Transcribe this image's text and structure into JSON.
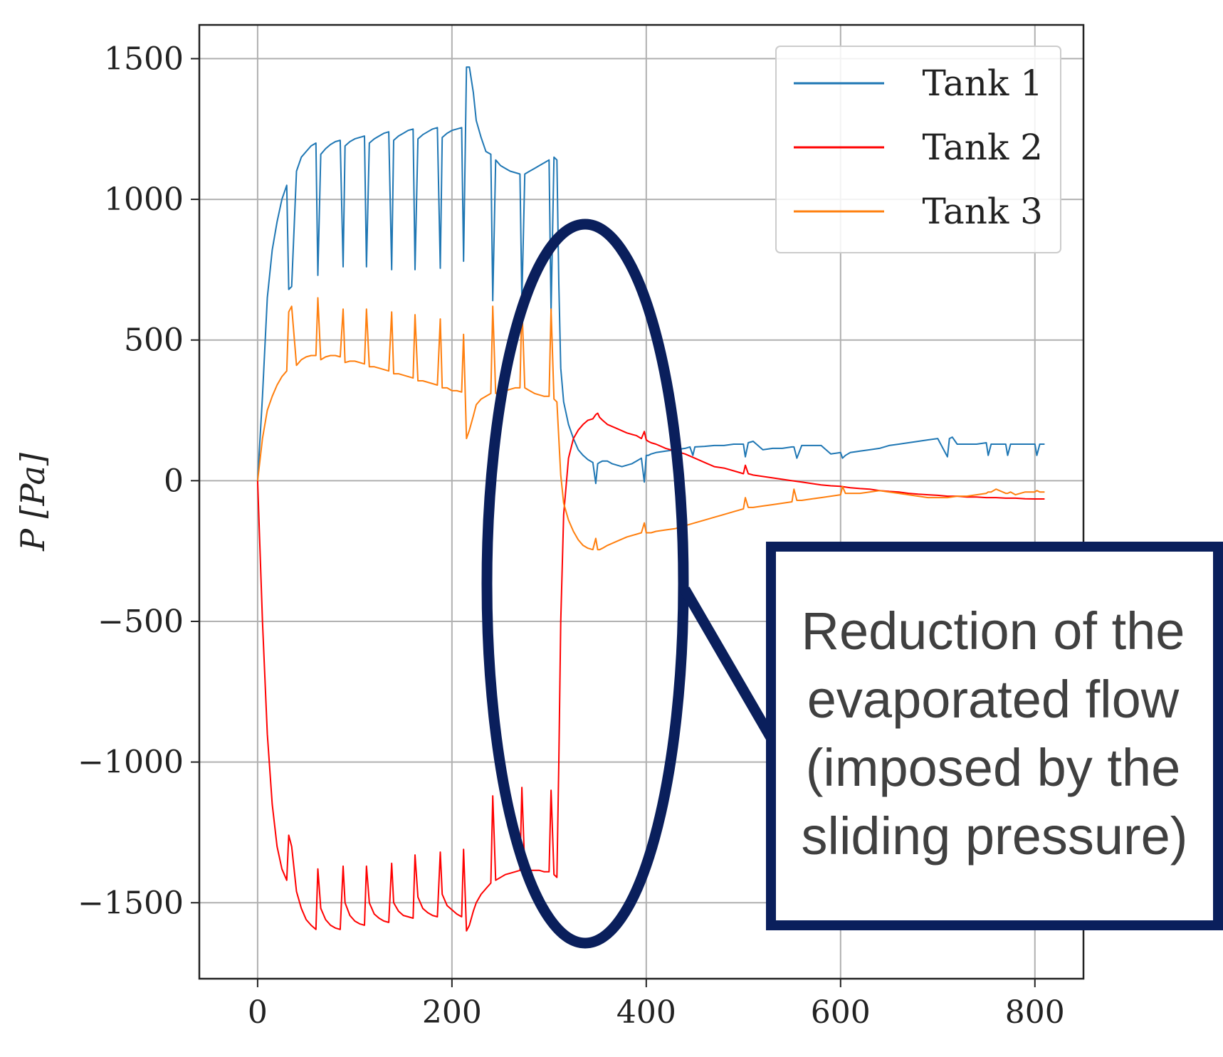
{
  "chart_data": {
    "type": "line",
    "xlabel": "",
    "ylabel": "P [Pa]",
    "xlim": [
      -60,
      850
    ],
    "ylim": [
      -1770,
      1620
    ],
    "xticks": [
      0,
      200,
      400,
      600,
      800
    ],
    "yticks": [
      -1500,
      -1000,
      -500,
      0,
      500,
      1000,
      1500
    ],
    "xtick_labels": [
      "0",
      "200",
      "400",
      "600",
      "800"
    ],
    "ytick_labels": [
      "−1500",
      "−1000",
      "−500",
      "0",
      "500",
      "1000",
      "1500"
    ],
    "grid": true,
    "legend_position": "top-right",
    "series": [
      {
        "name": "Tank 1",
        "color": "#1f77b4",
        "x": [
          0,
          5,
          10,
          15,
          20,
          25,
          30,
          32,
          35,
          40,
          45,
          50,
          55,
          60,
          62,
          65,
          70,
          75,
          80,
          85,
          88,
          90,
          95,
          100,
          105,
          110,
          112,
          115,
          120,
          125,
          130,
          135,
          138,
          140,
          145,
          150,
          155,
          160,
          162,
          165,
          170,
          175,
          180,
          185,
          188,
          190,
          195,
          200,
          205,
          210,
          212,
          215,
          218,
          222,
          225,
          230,
          235,
          240,
          242,
          245,
          250,
          255,
          260,
          265,
          270,
          272,
          275,
          280,
          285,
          290,
          295,
          300,
          302,
          305,
          308,
          310,
          312,
          315,
          320,
          325,
          330,
          335,
          340,
          345,
          348,
          350,
          352,
          355,
          360,
          365,
          370,
          375,
          380,
          385,
          390,
          395,
          398,
          400,
          402,
          405,
          410,
          420,
          430,
          440,
          445,
          448,
          450,
          460,
          470,
          480,
          490,
          500,
          502,
          505,
          510,
          520,
          530,
          540,
          550,
          552,
          555,
          560,
          570,
          580,
          590,
          600,
          602,
          605,
          610,
          620,
          630,
          640,
          650,
          660,
          670,
          680,
          690,
          700,
          710,
          712,
          715,
          720,
          730,
          740,
          750,
          752,
          755,
          760,
          770,
          772,
          775,
          780,
          790,
          800,
          802,
          805,
          810
        ],
        "y": [
          0,
          300,
          650,
          820,
          920,
          1000,
          1050,
          680,
          690,
          1100,
          1150,
          1170,
          1190,
          1200,
          730,
          1160,
          1180,
          1195,
          1205,
          1210,
          760,
          1190,
          1205,
          1215,
          1220,
          1225,
          760,
          1200,
          1215,
          1225,
          1235,
          1240,
          750,
          1210,
          1225,
          1235,
          1245,
          1250,
          750,
          1215,
          1230,
          1240,
          1250,
          1255,
          755,
          1220,
          1235,
          1245,
          1250,
          1255,
          780,
          1470,
          1470,
          1380,
          1280,
          1220,
          1170,
          1160,
          640,
          1140,
          1120,
          1110,
          1100,
          1095,
          1090,
          640,
          1090,
          1100,
          1110,
          1120,
          1130,
          1140,
          600,
          1150,
          1140,
          700,
          400,
          280,
          200,
          150,
          110,
          90,
          75,
          65,
          -10,
          60,
          65,
          70,
          70,
          60,
          55,
          50,
          55,
          60,
          70,
          80,
          -5,
          90,
          90,
          95,
          100,
          105,
          110,
          115,
          120,
          90,
          120,
          122,
          125,
          125,
          130,
          130,
          85,
          135,
          140,
          110,
          115,
          115,
          120,
          120,
          80,
          125,
          125,
          125,
          95,
          100,
          80,
          90,
          100,
          105,
          110,
          115,
          125,
          130,
          135,
          140,
          145,
          150,
          85,
          150,
          155,
          130,
          130,
          130,
          135,
          90,
          130,
          130,
          130,
          90,
          130,
          130,
          130,
          130,
          90,
          130,
          130
        ]
      },
      {
        "name": "Tank 2",
        "color": "#ff0000",
        "x": [
          0,
          5,
          10,
          15,
          20,
          25,
          30,
          32,
          35,
          40,
          45,
          50,
          55,
          60,
          62,
          65,
          70,
          75,
          80,
          85,
          88,
          90,
          95,
          100,
          105,
          110,
          112,
          115,
          120,
          125,
          130,
          135,
          138,
          140,
          145,
          150,
          155,
          160,
          162,
          165,
          170,
          175,
          180,
          185,
          188,
          190,
          195,
          200,
          205,
          210,
          212,
          215,
          218,
          222,
          225,
          230,
          235,
          240,
          242,
          245,
          250,
          255,
          260,
          265,
          270,
          272,
          275,
          280,
          285,
          290,
          295,
          300,
          302,
          305,
          308,
          310,
          312,
          315,
          320,
          325,
          330,
          335,
          340,
          345,
          348,
          350,
          352,
          355,
          360,
          370,
          380,
          390,
          395,
          398,
          400,
          402,
          405,
          410,
          420,
          430,
          440,
          450,
          460,
          470,
          480,
          490,
          500,
          502,
          505,
          510,
          520,
          530,
          540,
          550,
          560,
          570,
          580,
          590,
          600,
          610,
          620,
          630,
          640,
          650,
          660,
          670,
          680,
          690,
          700,
          710,
          720,
          730,
          740,
          750,
          760,
          770,
          780,
          790,
          800,
          810
        ],
        "y": [
          0,
          -500,
          -900,
          -1150,
          -1300,
          -1380,
          -1420,
          -1260,
          -1300,
          -1460,
          -1520,
          -1560,
          -1580,
          -1595,
          -1380,
          -1520,
          -1560,
          -1580,
          -1590,
          -1595,
          -1370,
          -1500,
          -1545,
          -1565,
          -1575,
          -1580,
          -1370,
          -1500,
          -1540,
          -1555,
          -1565,
          -1570,
          -1360,
          -1500,
          -1530,
          -1545,
          -1550,
          -1555,
          -1330,
          -1480,
          -1520,
          -1535,
          -1545,
          -1550,
          -1320,
          -1470,
          -1510,
          -1525,
          -1540,
          -1550,
          -1310,
          -1600,
          -1580,
          -1530,
          -1500,
          -1470,
          -1450,
          -1430,
          -1120,
          -1420,
          -1410,
          -1400,
          -1395,
          -1390,
          -1385,
          -1090,
          -1385,
          -1385,
          -1385,
          -1385,
          -1390,
          -1390,
          -1100,
          -1400,
          -1410,
          -1000,
          -500,
          -120,
          80,
          150,
          180,
          200,
          215,
          220,
          235,
          240,
          225,
          215,
          200,
          185,
          170,
          160,
          150,
          175,
          145,
          140,
          135,
          130,
          115,
          105,
          95,
          80,
          65,
          50,
          45,
          35,
          25,
          55,
          25,
          20,
          15,
          10,
          5,
          0,
          -5,
          -10,
          -15,
          -18,
          -20,
          -25,
          -28,
          -30,
          -35,
          -38,
          -40,
          -45,
          -48,
          -50,
          -52,
          -55,
          -55,
          -58,
          -58,
          -60,
          -60,
          -62,
          -62,
          -64,
          -65,
          -65
        ]
      },
      {
        "name": "Tank 3",
        "color": "#ff7f0e",
        "x": [
          0,
          5,
          10,
          15,
          20,
          25,
          30,
          32,
          35,
          40,
          45,
          50,
          55,
          60,
          62,
          65,
          70,
          75,
          80,
          85,
          88,
          90,
          95,
          100,
          105,
          110,
          112,
          115,
          120,
          125,
          130,
          135,
          138,
          140,
          145,
          150,
          155,
          160,
          162,
          165,
          170,
          175,
          180,
          185,
          188,
          190,
          195,
          200,
          205,
          210,
          212,
          215,
          218,
          222,
          225,
          230,
          235,
          240,
          242,
          245,
          250,
          255,
          260,
          265,
          270,
          272,
          275,
          280,
          285,
          290,
          295,
          300,
          302,
          305,
          308,
          310,
          312,
          315,
          320,
          325,
          330,
          335,
          340,
          345,
          348,
          350,
          352,
          355,
          360,
          370,
          380,
          390,
          395,
          398,
          400,
          402,
          405,
          410,
          420,
          430,
          440,
          450,
          460,
          470,
          480,
          490,
          500,
          502,
          505,
          510,
          520,
          530,
          540,
          550,
          552,
          555,
          560,
          570,
          580,
          590,
          600,
          602,
          605,
          610,
          620,
          630,
          640,
          650,
          660,
          670,
          680,
          690,
          700,
          710,
          720,
          730,
          740,
          750,
          752,
          755,
          760,
          770,
          772,
          775,
          780,
          790,
          800,
          802,
          805,
          810
        ],
        "y": [
          0,
          150,
          250,
          300,
          340,
          370,
          390,
          600,
          620,
          410,
          430,
          440,
          445,
          445,
          650,
          430,
          440,
          445,
          445,
          440,
          610,
          420,
          425,
          425,
          420,
          415,
          610,
          405,
          405,
          400,
          395,
          390,
          600,
          380,
          380,
          375,
          370,
          365,
          590,
          355,
          355,
          350,
          345,
          340,
          575,
          330,
          330,
          320,
          320,
          315,
          520,
          150,
          180,
          230,
          270,
          290,
          300,
          310,
          620,
          310,
          315,
          320,
          325,
          330,
          330,
          630,
          330,
          320,
          310,
          305,
          300,
          300,
          610,
          290,
          280,
          150,
          20,
          -80,
          -140,
          -180,
          -210,
          -230,
          -240,
          -245,
          -205,
          -245,
          -245,
          -240,
          -230,
          -215,
          -200,
          -190,
          -185,
          -150,
          -185,
          -185,
          -185,
          -180,
          -175,
          -170,
          -160,
          -150,
          -140,
          -130,
          -120,
          -110,
          -100,
          -60,
          -95,
          -95,
          -90,
          -85,
          -80,
          -75,
          -30,
          -70,
          -70,
          -65,
          -60,
          -55,
          -50,
          -20,
          -45,
          -45,
          -45,
          -40,
          -35,
          -40,
          -45,
          -50,
          -55,
          -60,
          -60,
          -60,
          -55,
          -55,
          -50,
          -45,
          -40,
          -40,
          -30,
          -45,
          -45,
          -40,
          -50,
          -40,
          -40,
          -35,
          -40,
          -40
        ]
      }
    ],
    "annotation": {
      "lines": [
        "Reduction of the",
        "evaporated flow",
        "(imposed by the",
        "sliding pressure)"
      ]
    }
  },
  "colors": {
    "callout_border": "#0a1f5c",
    "grid": "#b0b0b0",
    "frame": "#222222"
  }
}
